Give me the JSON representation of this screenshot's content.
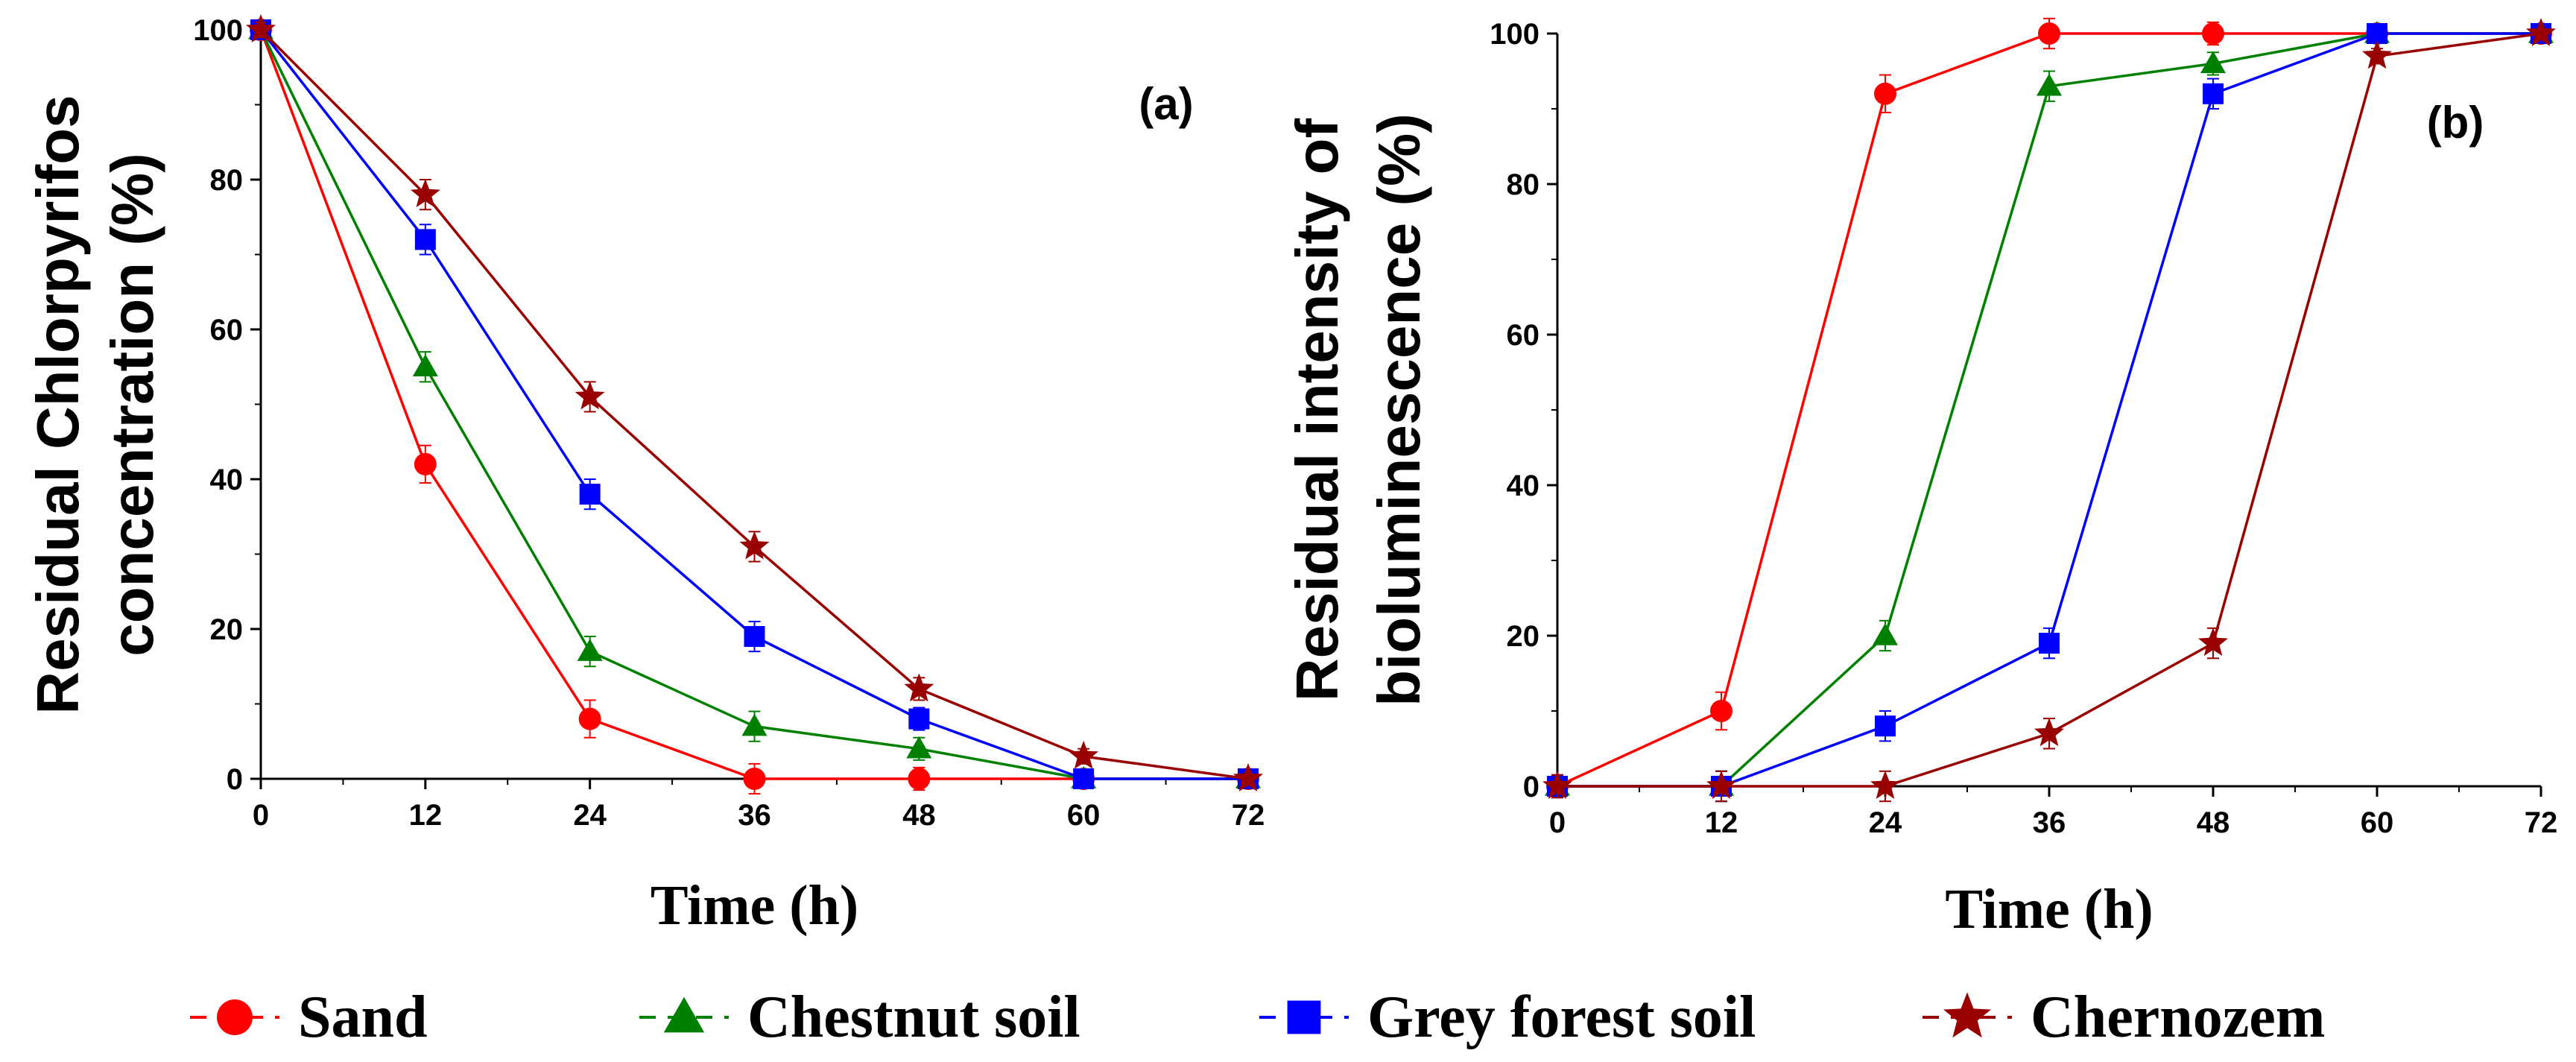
{
  "legend": {
    "position": "bottom",
    "items": [
      {
        "name": "Sand",
        "color": "#ff0000",
        "marker": "circle"
      },
      {
        "name": "Chestnut soil",
        "color": "#008000",
        "marker": "triangle"
      },
      {
        "name": "Grey forest soil",
        "color": "#0000ff",
        "marker": "square"
      },
      {
        "name": "Chernozem",
        "color": "#990000",
        "marker": "star"
      }
    ]
  },
  "chart_data": [
    {
      "type": "line",
      "panel_label": "(a)",
      "xlabel": "Time (h)",
      "ylabel": [
        "Residual Chlorpyrifos",
        "concentration (%)"
      ],
      "x": [
        0,
        12,
        24,
        36,
        48,
        60,
        72
      ],
      "xticks": [
        "0",
        "12",
        "24",
        "36",
        "48",
        "60",
        "72"
      ],
      "yticks": [
        "0",
        "20",
        "40",
        "60",
        "80",
        "100"
      ],
      "xlim": [
        0,
        72
      ],
      "ylim": [
        0,
        100
      ],
      "grid": false,
      "series": [
        {
          "name": "Sand",
          "values": [
            100,
            42,
            8,
            0,
            0,
            0,
            0
          ],
          "err": [
            1,
            2.5,
            2.5,
            2,
            1.5,
            1,
            0.5
          ]
        },
        {
          "name": "Chestnut soil",
          "values": [
            100,
            55,
            17,
            7,
            4,
            0,
            0
          ],
          "err": [
            1,
            2,
            2,
            2,
            1.5,
            1,
            0.5
          ]
        },
        {
          "name": "Grey forest soil",
          "values": [
            100,
            72,
            38,
            19,
            8,
            0,
            0
          ],
          "err": [
            1,
            2,
            2,
            2,
            1.5,
            1,
            0.5
          ]
        },
        {
          "name": "Chernozem",
          "values": [
            100,
            78,
            51,
            31,
            12,
            3,
            0
          ],
          "err": [
            1,
            2,
            2,
            2,
            1.5,
            1,
            0.5
          ]
        }
      ]
    },
    {
      "type": "line",
      "panel_label": "(b)",
      "xlabel": "Time (h)",
      "ylabel": [
        "Residual intensity of",
        "bioluminescence (%)"
      ],
      "x": [
        0,
        12,
        24,
        36,
        48,
        60,
        72
      ],
      "xticks": [
        "0",
        "12",
        "24",
        "36",
        "48",
        "60",
        "72"
      ],
      "yticks": [
        "0",
        "20",
        "40",
        "60",
        "80",
        "100"
      ],
      "xlim": [
        0,
        72
      ],
      "ylim": [
        0,
        100
      ],
      "grid": false,
      "series": [
        {
          "name": "Sand",
          "values": [
            0,
            10,
            92,
            100,
            100,
            100,
            100
          ],
          "err": [
            1.5,
            2.5,
            2.5,
            2,
            1.5,
            1,
            0.5
          ]
        },
        {
          "name": "Chestnut soil",
          "values": [
            0,
            0,
            20,
            93,
            96,
            100,
            100
          ],
          "err": [
            1.5,
            2,
            2,
            2,
            1.5,
            1,
            0.5
          ]
        },
        {
          "name": "Grey forest soil",
          "values": [
            0,
            0,
            8,
            19,
            92,
            100,
            100
          ],
          "err": [
            1.5,
            2,
            2,
            2,
            2,
            1,
            0.5
          ]
        },
        {
          "name": "Chernozem",
          "values": [
            0,
            0,
            0,
            7,
            19,
            97,
            100
          ],
          "err": [
            1.5,
            2,
            2,
            2,
            2,
            1,
            0.5
          ]
        }
      ]
    }
  ]
}
